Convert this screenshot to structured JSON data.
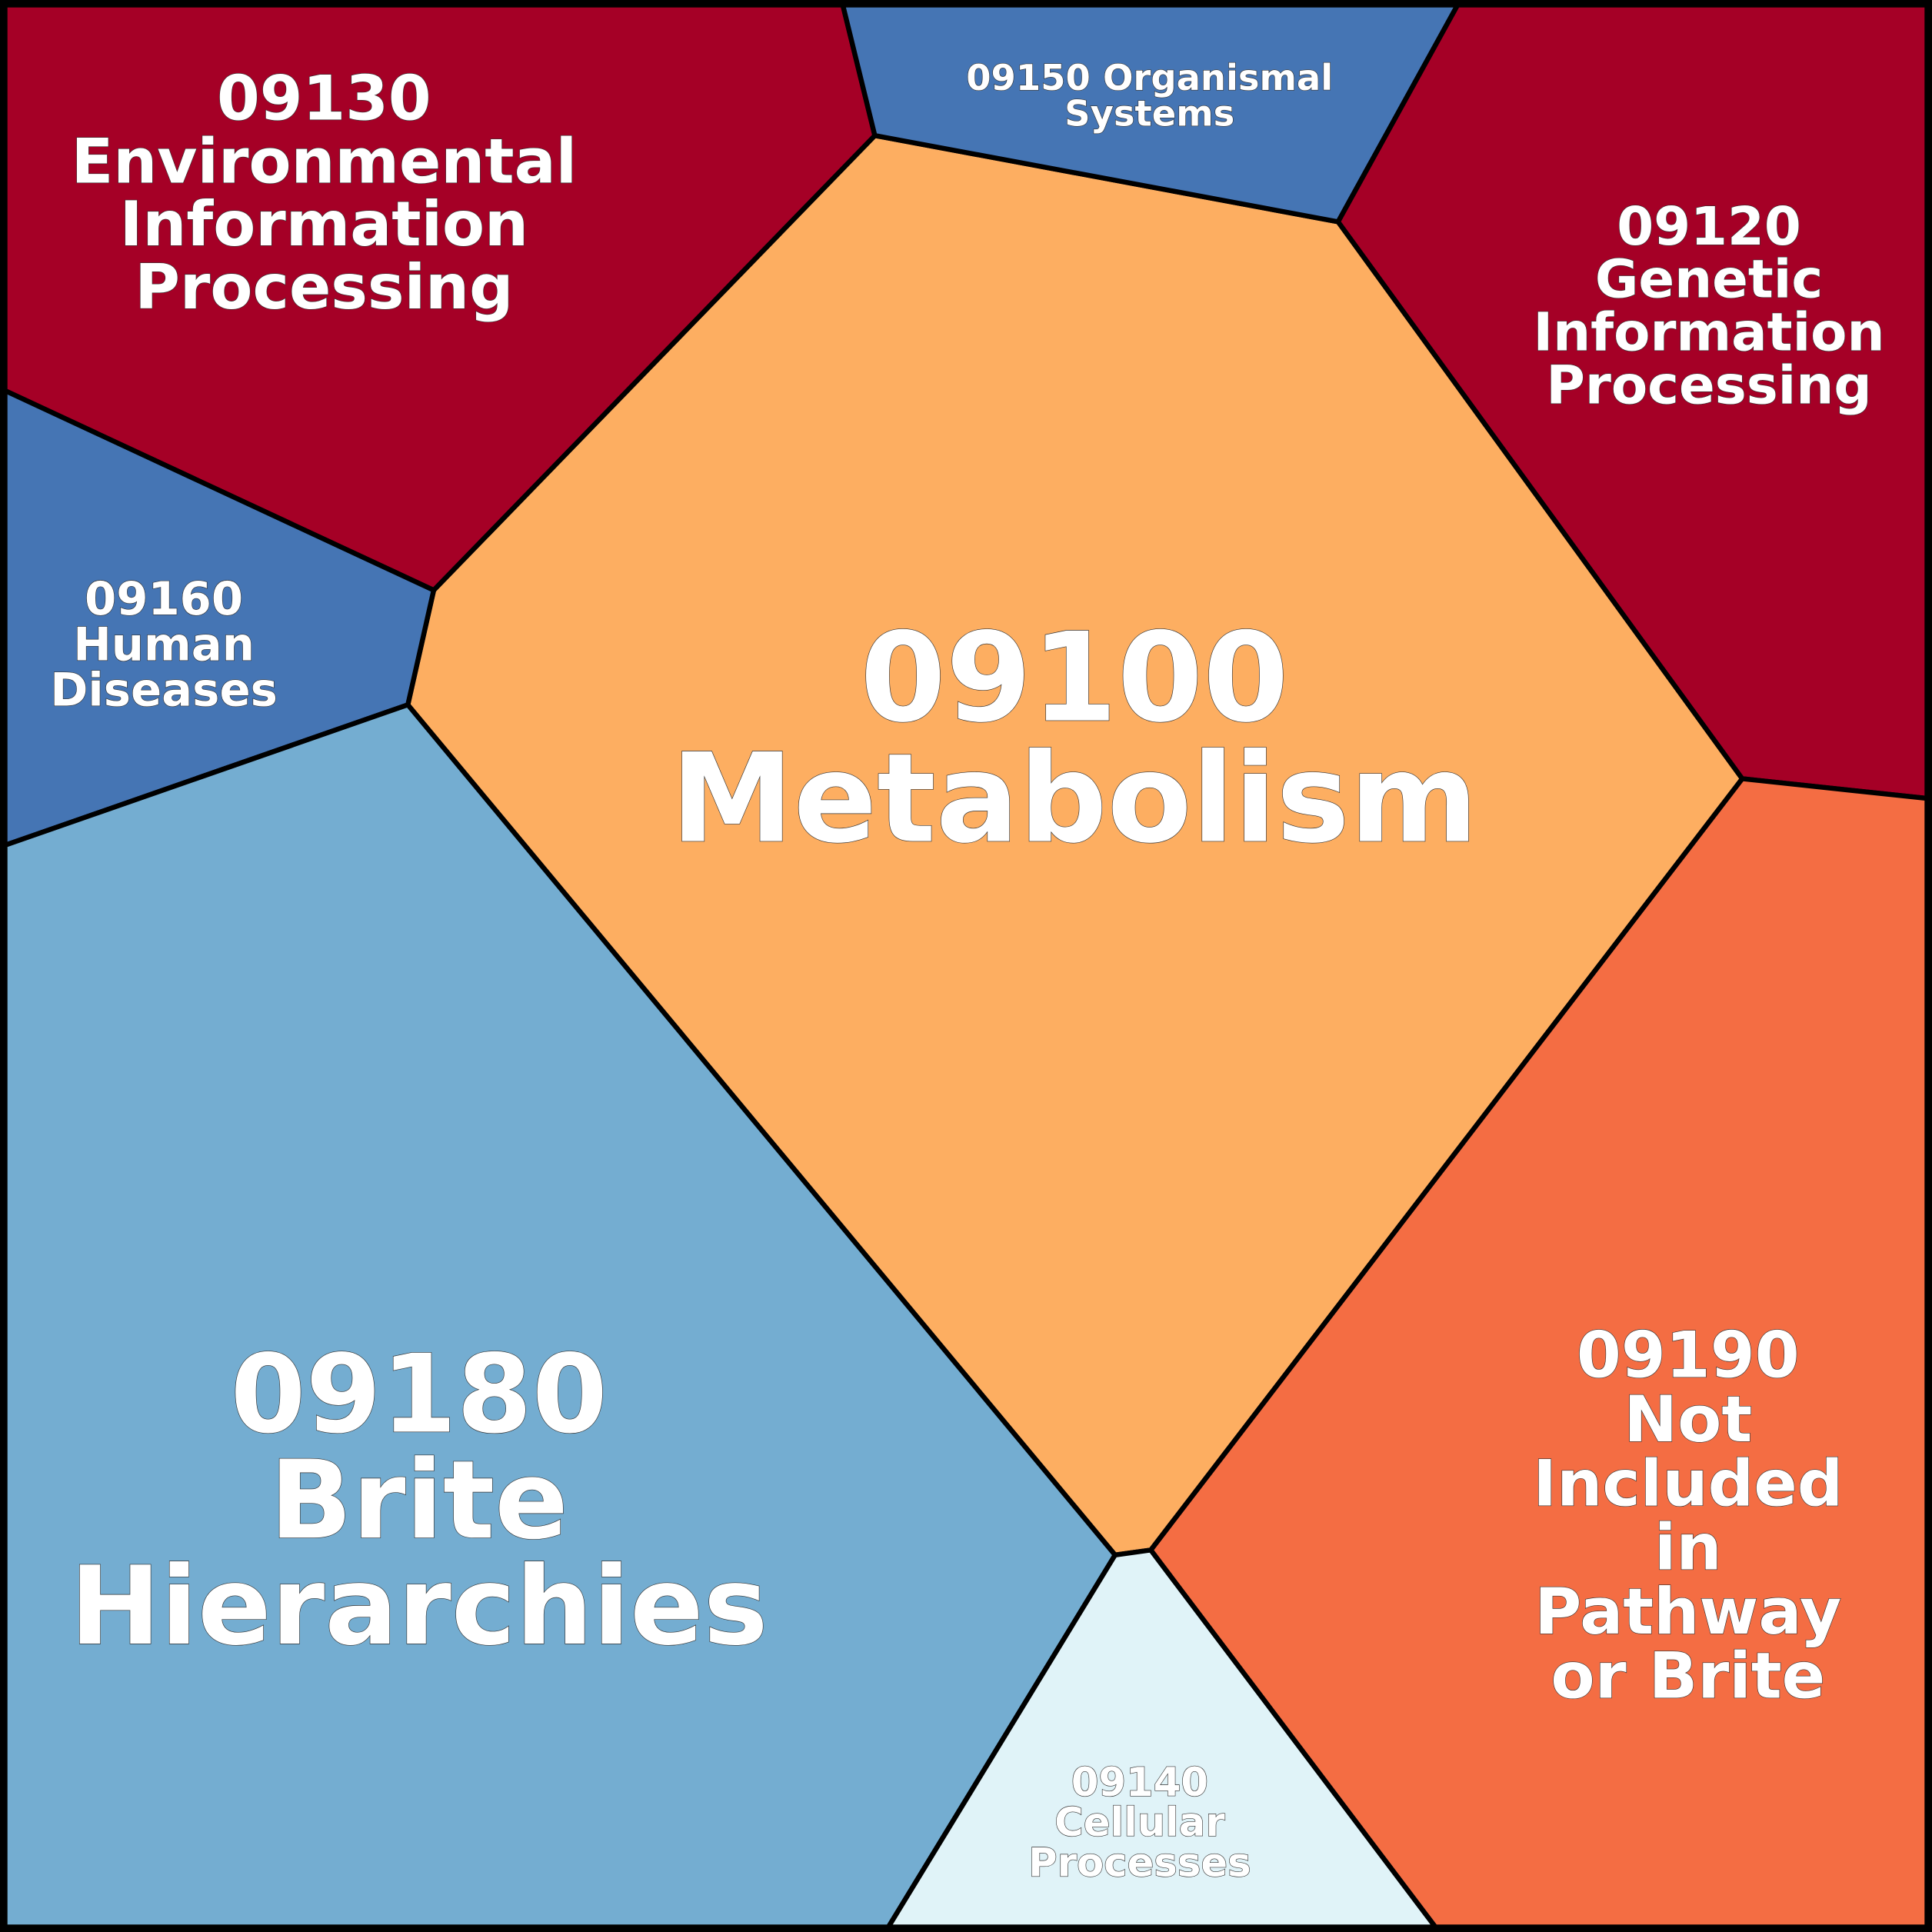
{
  "cells": [
    {
      "lines": [
        "09100",
        "Metabolism"
      ]
    },
    {
      "lines": [
        "09130",
        "Environmental",
        "Information",
        "Processing"
      ]
    },
    {
      "lines": [
        "09150 Organismal",
        "Systems"
      ]
    },
    {
      "lines": [
        "09120",
        "Genetic",
        "Information",
        "Processing"
      ]
    },
    {
      "lines": [
        "09160",
        "Human",
        "Diseases"
      ]
    },
    {
      "lines": [
        "09180",
        "Brite",
        "Hierarchies"
      ]
    },
    {
      "lines": [
        "09140",
        "Cellular",
        "Processes"
      ]
    },
    {
      "lines": [
        "09190",
        "Not",
        "Included",
        "in",
        "Pathway",
        "or Brite"
      ]
    }
  ]
}
